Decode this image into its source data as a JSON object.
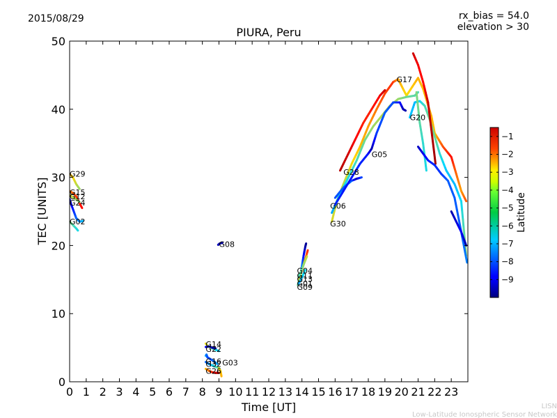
{
  "header": {
    "date": "2015/08/29",
    "rx_bias": "rx_bias = 54.0",
    "elevation": "elevation > 30"
  },
  "footer": {
    "line1": "LISN",
    "line2": "Low-Latitude Ionospheric Sensor Network"
  },
  "chart_data": {
    "type": "scatter",
    "title": "PIURA, Peru",
    "xlabel": "Time [UT]",
    "ylabel": "TEC [UNITS]",
    "xlim": [
      0,
      24
    ],
    "ylim": [
      0,
      50
    ],
    "xticks": [
      "0",
      "1",
      "2",
      "3",
      "4",
      "5",
      "6",
      "7",
      "8",
      "9",
      "10",
      "11",
      "12",
      "13",
      "14",
      "15",
      "16",
      "17",
      "18",
      "19",
      "20",
      "21",
      "22",
      "23"
    ],
    "yticks": [
      "0",
      "10",
      "20",
      "30",
      "40",
      "50"
    ],
    "grid": false,
    "colorbar": {
      "label": "Latitude",
      "range": [
        -10,
        -0.5
      ],
      "ticks": [
        "−1",
        "−2",
        "−3",
        "−4",
        "−5",
        "−6",
        "−7",
        "−8",
        "−9"
      ],
      "tick_values": [
        -1,
        -2,
        -3,
        -4,
        -5,
        -6,
        -7,
        -8,
        -9
      ],
      "colormap": "jet"
    },
    "satellite_labels": [
      {
        "name": "G29",
        "x": 0.0,
        "y": 30.5
      },
      {
        "name": "G15",
        "x": 0.0,
        "y": 27.8
      },
      {
        "name": "G12",
        "x": 0.0,
        "y": 27.2
      },
      {
        "name": "G24",
        "x": 0.0,
        "y": 26.3
      },
      {
        "name": "G02",
        "x": 0.0,
        "y": 23.5
      },
      {
        "name": "G08",
        "x": 9.0,
        "y": 20.2
      },
      {
        "name": "G04",
        "x": 13.7,
        "y": 16.3
      },
      {
        "name": "G11",
        "x": 13.7,
        "y": 15.6
      },
      {
        "name": "G13",
        "x": 13.7,
        "y": 15.1
      },
      {
        "name": "G01",
        "x": 13.7,
        "y": 14.4
      },
      {
        "name": "G09",
        "x": 13.7,
        "y": 13.9
      },
      {
        "name": "G14",
        "x": 8.2,
        "y": 5.5
      },
      {
        "name": "G22",
        "x": 8.2,
        "y": 4.8
      },
      {
        "name": "G16",
        "x": 8.2,
        "y": 3.0
      },
      {
        "name": "G32",
        "x": 8.2,
        "y": 2.6
      },
      {
        "name": "G03",
        "x": 9.2,
        "y": 2.8
      },
      {
        "name": "G26",
        "x": 8.2,
        "y": 1.6
      },
      {
        "name": "G17",
        "x": 19.7,
        "y": 44.4
      },
      {
        "name": "G20",
        "x": 20.5,
        "y": 38.8
      },
      {
        "name": "G05",
        "x": 18.2,
        "y": 33.4
      },
      {
        "name": "G28",
        "x": 16.5,
        "y": 30.8
      },
      {
        "name": "G06",
        "x": 15.7,
        "y": 25.8
      },
      {
        "name": "G30",
        "x": 15.7,
        "y": 23.2
      }
    ],
    "tracks": [
      {
        "points": [
          [
            0.0,
            30.5,
            -3.6
          ],
          [
            0.2,
            30.0,
            -4.0
          ],
          [
            0.4,
            29.0,
            -4.6
          ],
          [
            0.6,
            28.3,
            -5.0
          ]
        ]
      },
      {
        "points": [
          [
            0.0,
            28.0,
            -3.2
          ],
          [
            0.2,
            27.7,
            -2.8
          ],
          [
            0.4,
            27.2,
            -2.4
          ],
          [
            0.6,
            26.2,
            -2.0
          ],
          [
            0.75,
            25.5,
            -1.8
          ]
        ]
      },
      {
        "points": [
          [
            0.0,
            27.4,
            -4.4
          ],
          [
            0.3,
            26.9,
            -4.8
          ],
          [
            0.6,
            26.4,
            -5.2
          ]
        ]
      },
      {
        "points": [
          [
            0.0,
            26.8,
            -9.6
          ],
          [
            0.1,
            26.0,
            -9.0
          ],
          [
            0.25,
            25.0,
            -8.4
          ],
          [
            0.4,
            24.0,
            -7.8
          ],
          [
            0.6,
            23.5,
            -7.2
          ],
          [
            0.8,
            23.6,
            -6.8
          ]
        ]
      },
      {
        "points": [
          [
            0.0,
            23.5,
            -5.0
          ],
          [
            0.2,
            23.0,
            -5.6
          ],
          [
            0.4,
            22.5,
            -6.0
          ],
          [
            0.5,
            22.2,
            -6.2
          ]
        ]
      },
      {
        "points": [
          [
            8.95,
            20.1,
            -9.4
          ],
          [
            9.05,
            20.3,
            -9.6
          ],
          [
            9.2,
            20.4,
            -9.7
          ]
        ]
      },
      {
        "points": [
          [
            13.75,
            14.2,
            -5.4
          ],
          [
            13.9,
            15.5,
            -6.2
          ],
          [
            14.0,
            17.0,
            -7.4
          ],
          [
            14.1,
            18.5,
            -8.6
          ],
          [
            14.2,
            19.8,
            -9.6
          ],
          [
            14.25,
            20.3,
            -9.8
          ]
        ]
      },
      {
        "points": [
          [
            13.8,
            14.8,
            -4.8
          ],
          [
            13.95,
            16.0,
            -4.4
          ],
          [
            14.1,
            17.2,
            -3.6
          ],
          [
            14.25,
            18.4,
            -2.8
          ],
          [
            14.35,
            19.3,
            -2.2
          ]
        ]
      },
      {
        "points": [
          [
            13.8,
            15.4,
            -5.8
          ],
          [
            14.0,
            16.5,
            -5.4
          ],
          [
            14.15,
            17.5,
            -5.0
          ],
          [
            14.3,
            18.4,
            -4.6
          ]
        ]
      },
      {
        "points": [
          [
            13.8,
            14.4,
            -7.0
          ],
          [
            14.0,
            15.3,
            -6.6
          ],
          [
            14.2,
            16.4,
            -6.2
          ]
        ]
      },
      {
        "points": [
          [
            8.2,
            5.6,
            -4.2
          ],
          [
            8.4,
            5.1,
            -4.8
          ],
          [
            8.6,
            4.9,
            -5.4
          ],
          [
            8.8,
            4.7,
            -6.0
          ],
          [
            9.0,
            4.5,
            -6.6
          ]
        ]
      },
      {
        "points": [
          [
            8.2,
            5.1,
            -9.0
          ],
          [
            8.4,
            5.2,
            -9.4
          ],
          [
            8.6,
            5.0,
            -9.6
          ],
          [
            8.8,
            4.9,
            -9.7
          ]
        ]
      },
      {
        "points": [
          [
            8.2,
            3.8,
            -6.6
          ],
          [
            8.25,
            4.0,
            -7.4
          ],
          [
            8.3,
            3.6,
            -8.0
          ],
          [
            8.5,
            3.3,
            -8.0
          ],
          [
            8.7,
            3.0,
            -7.6
          ],
          [
            8.9,
            2.6,
            -7.0
          ]
        ]
      },
      {
        "points": [
          [
            8.2,
            2.9,
            -7.8
          ],
          [
            8.4,
            2.6,
            -7.2
          ],
          [
            8.6,
            2.4,
            -6.6
          ],
          [
            8.8,
            2.2,
            -6.0
          ],
          [
            9.0,
            2.0,
            -5.4
          ],
          [
            9.1,
            1.6,
            -4.6
          ]
        ]
      },
      {
        "points": [
          [
            9.0,
            2.0,
            -4.4
          ],
          [
            9.1,
            1.5,
            -4.0
          ],
          [
            9.15,
            0.8,
            -3.6
          ]
        ]
      },
      {
        "points": [
          [
            8.2,
            1.9,
            -3.8
          ],
          [
            8.4,
            1.6,
            -3.0
          ],
          [
            8.6,
            1.4,
            -2.2
          ],
          [
            8.8,
            1.3,
            -1.4
          ],
          [
            9.0,
            1.3,
            -0.8
          ]
        ]
      },
      {
        "points": [
          [
            15.8,
            23.5,
            -4.4
          ],
          [
            16.1,
            26.5,
            -4.6
          ],
          [
            16.5,
            29.0,
            -4.8
          ],
          [
            17.0,
            32.0,
            -4.2
          ],
          [
            17.5,
            34.5,
            -3.8
          ],
          [
            18.0,
            37.5,
            -3.4
          ],
          [
            18.5,
            40.0,
            -3.0
          ],
          [
            19.0,
            42.3,
            -2.4
          ],
          [
            19.5,
            44.0,
            -2.2
          ],
          [
            19.8,
            44.4,
            -3.4
          ],
          [
            20.3,
            42.0,
            -4.2
          ],
          [
            21.0,
            44.6,
            -3.6
          ],
          [
            21.3,
            43.0,
            -3.8
          ],
          [
            21.8,
            39.0,
            -3.6
          ],
          [
            22.0,
            36.5,
            -3.8
          ],
          [
            22.5,
            34.5,
            -2.6
          ],
          [
            23.0,
            33.0,
            -1.8
          ],
          [
            23.3,
            30.5,
            -2.8
          ],
          [
            23.6,
            28.0,
            -3.4
          ],
          [
            23.9,
            26.5,
            -2.6
          ]
        ]
      },
      {
        "points": [
          [
            16.3,
            31.0,
            -1.0
          ],
          [
            16.7,
            33.0,
            -1.2
          ],
          [
            17.2,
            35.5,
            -1.6
          ],
          [
            17.7,
            38.0,
            -2.0
          ],
          [
            18.2,
            40.0,
            -2.0
          ],
          [
            18.7,
            42.0,
            -1.6
          ],
          [
            19.0,
            42.8,
            -1.2
          ]
        ]
      },
      {
        "points": [
          [
            15.8,
            24.8,
            -7.0
          ],
          [
            16.2,
            27.0,
            -6.6
          ],
          [
            16.7,
            29.5,
            -6.2
          ],
          [
            17.3,
            32.5,
            -5.8
          ],
          [
            17.8,
            35.5,
            -5.4
          ],
          [
            18.3,
            37.5,
            -5.0
          ],
          [
            18.8,
            39.0,
            -4.8
          ],
          [
            19.3,
            40.5,
            -4.6
          ],
          [
            19.8,
            41.5,
            -5.0
          ],
          [
            20.3,
            41.8,
            -5.4
          ],
          [
            20.8,
            42.0,
            -5.6
          ],
          [
            21.0,
            42.5,
            -5.8
          ]
        ]
      },
      {
        "points": [
          [
            16.0,
            27.0,
            -8.0
          ],
          [
            16.5,
            28.5,
            -7.8
          ],
          [
            17.0,
            29.5,
            -7.6
          ],
          [
            17.3,
            29.8,
            -9.6
          ],
          [
            17.6,
            30.0,
            -8.0
          ]
        ]
      },
      {
        "points": [
          [
            16.0,
            26.0,
            -8.4
          ],
          [
            16.5,
            28.0,
            -8.6
          ],
          [
            17.0,
            30.0,
            -8.6
          ],
          [
            17.5,
            32.0,
            -8.4
          ],
          [
            18.0,
            33.5,
            -8.6
          ],
          [
            18.2,
            34.2,
            -9.6
          ],
          [
            18.5,
            36.5,
            -8.2
          ],
          [
            19.0,
            39.5,
            -7.8
          ],
          [
            19.5,
            41.0,
            -8.0
          ],
          [
            19.9,
            41.0,
            -8.6
          ],
          [
            20.1,
            40.0,
            -9.4
          ],
          [
            20.25,
            39.8,
            -9.6
          ]
        ]
      },
      {
        "points": [
          [
            20.5,
            38.8,
            -6.6
          ],
          [
            20.8,
            41.0,
            -6.8
          ],
          [
            21.1,
            41.2,
            -6.4
          ],
          [
            21.4,
            40.5,
            -5.8
          ],
          [
            21.7,
            38.5,
            -5.4
          ],
          [
            22.0,
            36.0,
            -5.4
          ],
          [
            22.3,
            33.5,
            -6.0
          ],
          [
            22.7,
            31.0,
            -6.6
          ],
          [
            23.2,
            29.0,
            -6.8
          ],
          [
            23.6,
            26.5,
            -6.4
          ],
          [
            23.9,
            18.5,
            -5.0
          ]
        ]
      },
      {
        "points": [
          [
            20.7,
            48.2,
            -1.2
          ],
          [
            21.0,
            46.5,
            -1.6
          ],
          [
            21.3,
            44.0,
            -1.8
          ],
          [
            21.6,
            41.0,
            -1.2
          ],
          [
            21.8,
            37.0,
            -1.0
          ],
          [
            22.05,
            32.0,
            -0.8
          ]
        ]
      },
      {
        "points": [
          [
            20.9,
            42.5,
            -5.2
          ],
          [
            21.1,
            38.0,
            -5.6
          ],
          [
            21.3,
            35.0,
            -6.0
          ],
          [
            21.5,
            31.0,
            -6.2
          ]
        ]
      },
      {
        "points": [
          [
            21.0,
            34.5,
            -9.4
          ],
          [
            21.3,
            33.5,
            -9.0
          ],
          [
            21.6,
            32.5,
            -8.6
          ],
          [
            22.0,
            31.8,
            -8.4
          ],
          [
            22.4,
            30.5,
            -8.2
          ],
          [
            22.8,
            29.5,
            -7.8
          ],
          [
            23.2,
            27.0,
            -7.8
          ],
          [
            23.6,
            22.0,
            -7.8
          ],
          [
            23.95,
            17.5,
            -7.4
          ]
        ]
      },
      {
        "points": [
          [
            23.0,
            25.0,
            -9.6
          ],
          [
            23.3,
            23.5,
            -9.2
          ],
          [
            23.6,
            22.0,
            -8.8
          ],
          [
            23.9,
            20.0,
            -9.6
          ]
        ]
      }
    ]
  }
}
